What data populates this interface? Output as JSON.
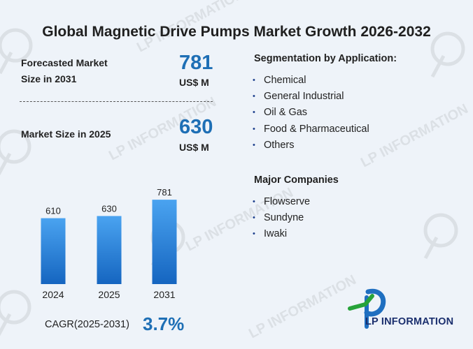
{
  "title": "Global Magnetic Drive Pumps Market Growth 2026-2032",
  "forecast": {
    "label_line1": "Forecasted Market",
    "label_line2": "Size in 2031",
    "value": "781",
    "unit": "US$ M"
  },
  "current": {
    "label": "Market Size in 2025",
    "value": "630",
    "unit": "US$ M"
  },
  "segmentation": {
    "title": "Segmentation by Application:",
    "items": [
      "Chemical",
      "General Industrial",
      "Oil & Gas",
      "Food & Pharmaceutical",
      "Others"
    ]
  },
  "companies": {
    "title": "Major Companies",
    "items": [
      "Flowserve",
      "Sundyne",
      "Iwaki"
    ]
  },
  "chart_data": {
    "type": "bar",
    "categories": [
      "2024",
      "2025",
      "2031"
    ],
    "values": [
      610,
      630,
      781
    ],
    "ylim": [
      0,
      900
    ],
    "grid": false,
    "bar_color_top": "#4aa3f0",
    "bar_color_bottom": "#1565c0"
  },
  "cagr": {
    "label": "CAGR(2025-2031)",
    "value": "3.7%"
  },
  "logo": {
    "text": "LP INFORMATION",
    "icon": "lp-information-logo-icon",
    "green": "#27a33a",
    "blue": "#1f6fc0"
  },
  "watermark": {
    "text": "LP INFORMATION",
    "icon": "lp-watermark-icon"
  },
  "colors": {
    "accent": "#1e6fb5",
    "background": "#eef3f9",
    "bullet": "#1c3f8c"
  }
}
